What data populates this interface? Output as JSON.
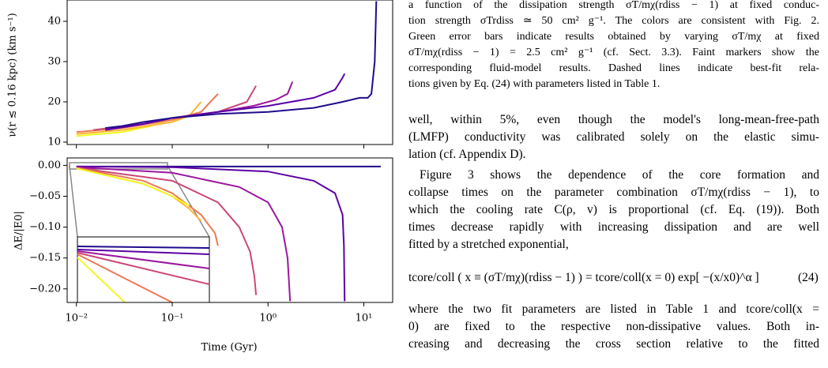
{
  "figure": {
    "xlim": [
      0.008,
      20
    ],
    "xticks": [
      {
        "value": 0.01,
        "label": "10⁻²"
      },
      {
        "value": 0.1,
        "label": "10⁻¹"
      },
      {
        "value": 1,
        "label": "10⁰"
      },
      {
        "value": 10,
        "label": "10¹"
      }
    ],
    "x_label": "Time (Gyr)",
    "log_x": true,
    "panels": [
      {
        "type": "line",
        "y_label": "ν(r ≲ 0.16 kpc) (km s⁻¹)",
        "ylim": [
          9.4,
          45.3
        ],
        "yticks": [
          10,
          20,
          30,
          40
        ],
        "series": [
          {
            "color": "#f0f921",
            "x": [
              0.01,
              0.03,
              0.06,
              0.09
            ],
            "values": [
              11.5,
              12.5,
              14,
              15.5
            ]
          },
          {
            "color": "#fdb42f",
            "x": [
              0.01,
              0.03,
              0.1,
              0.15,
              0.2
            ],
            "values": [
              12,
              13,
              15,
              16.5,
              20
            ]
          },
          {
            "color": "#ed7953",
            "x": [
              0.01,
              0.03,
              0.1,
              0.2,
              0.3
            ],
            "values": [
              12.5,
              13.5,
              15.5,
              17.5,
              22
            ]
          },
          {
            "color": "#cc4778",
            "x": [
              0.015,
              0.05,
              0.1,
              0.3,
              0.6,
              0.75
            ],
            "values": [
              13,
              14.5,
              16,
              17.5,
              20,
              24
            ]
          },
          {
            "color": "#9c179e",
            "x": [
              0.02,
              0.05,
              0.1,
              0.3,
              0.7,
              1.2,
              1.6,
              1.8
            ],
            "values": [
              13,
              14.5,
              16,
              17.5,
              19,
              20.5,
              22,
              25
            ]
          },
          {
            "color": "#5c01a6",
            "x": [
              0.02,
              0.05,
              0.1,
              0.3,
              1,
              3,
              5,
              6,
              6.3
            ],
            "values": [
              13,
              14.5,
              16,
              17.5,
              19,
              21,
              23,
              26,
              27
            ]
          },
          {
            "color": "#1f0c8c",
            "x": [
              0.02,
              0.03,
              0.05,
              0.1,
              0.3,
              1,
              3,
              6,
              9,
              11,
              12,
              13,
              13.5
            ],
            "values": [
              13.5,
              14,
              15,
              16,
              17,
              17.5,
              18.5,
              20,
              21,
              21,
              22,
              30,
              45
            ]
          }
        ]
      },
      {
        "type": "line",
        "y_label": "ΔE/|E0|",
        "ylim": [
          -0.222,
          0.012
        ],
        "yticks": [
          {
            "value": 0,
            "label": "0.00"
          },
          {
            "value": -0.05,
            "label": "−0.05"
          },
          {
            "value": -0.1,
            "label": "−0.10"
          },
          {
            "value": -0.15,
            "label": "−0.15"
          },
          {
            "value": -0.2,
            "label": "−0.20"
          }
        ],
        "series": [
          {
            "color": "#1f0c8c",
            "x": [
              0.01,
              15
            ],
            "values": [
              -0.002,
              -0.002
            ]
          },
          {
            "color": "#5c01a6",
            "x": [
              0.01,
              0.1,
              1,
              3,
              5,
              6,
              6.2,
              6.3
            ],
            "values": [
              -0.002,
              -0.003,
              -0.01,
              -0.025,
              -0.045,
              -0.08,
              -0.13,
              -0.22
            ]
          },
          {
            "color": "#9c179e",
            "x": [
              0.01,
              0.1,
              0.5,
              1,
              1.4,
              1.6,
              1.7
            ],
            "values": [
              -0.003,
              -0.012,
              -0.035,
              -0.06,
              -0.1,
              -0.15,
              -0.22
            ]
          },
          {
            "color": "#cc4778",
            "x": [
              0.01,
              0.1,
              0.3,
              0.5,
              0.65,
              0.72,
              0.75
            ],
            "values": [
              -0.004,
              -0.025,
              -0.06,
              -0.1,
              -0.14,
              -0.18,
              -0.21
            ]
          },
          {
            "color": "#ed7953",
            "x": [
              0.01,
              0.05,
              0.1,
              0.2,
              0.28,
              0.3
            ],
            "values": [
              -0.004,
              -0.025,
              -0.045,
              -0.08,
              -0.11,
              -0.13
            ]
          },
          {
            "color": "#fdb42f",
            "x": [
              0.01,
              0.05,
              0.1,
              0.15,
              0.2
            ],
            "values": [
              -0.005,
              -0.03,
              -0.05,
              -0.07,
              -0.09
            ]
          },
          {
            "color": "#f0f921",
            "x": [
              0.01,
              0.05,
              0.1,
              0.15
            ],
            "values": [
              -0.005,
              -0.03,
              -0.05,
              -0.065
            ]
          }
        ]
      }
    ]
  },
  "text": {
    "caption": [
      "a function of the dissipation strength σT/mχ(rdiss − 1) at fixed conduc-",
      "tion strength σTrdiss ≃ 50 cm² g⁻¹. The colors are consistent with Fig. 2.",
      "Green error bars indicate results obtained by varying σT/mχ at fixed",
      "σT/mχ(rdiss − 1) = 2.5 cm² g⁻¹ (cf. Sect. 3.3). Faint markers show the",
      "corresponding fluid-model results. Dashed lines indicate best-fit rela-",
      "tions given by Eq. (24) with parameters listed in Table 1."
    ],
    "paragraphs": [
      [
        "well, within 5%, even though the model's long-mean-free-path",
        "(LMFP) conductivity was calibrated solely on the elastic simu-",
        "lation (cf. Appendix D)."
      ],
      [
        "Figure 3 shows the dependence of the core formation and",
        "collapse times on the parameter combination σT/mχ(rdiss − 1), to",
        "which the cooling rate C(ρ, v) is proportional (cf. Eq. (19)). Both",
        "times decrease rapidly with increasing dissipation and are well",
        "fitted by a stretched exponential,"
      ]
    ],
    "equation": {
      "body": "tcore/coll ( x ≡ (σT/mχ)(rdiss − 1) ) = tcore/coll(x = 0) exp[ −(x/x0)^α ]",
      "number": "(24)"
    },
    "after": [
      "where the two fit parameters are listed in Table 1 and tcore/coll(x =",
      "0) are fixed to the respective non-dissipative values. Both in-",
      "creasing and decreasing the cross section relative to the fitted"
    ]
  }
}
